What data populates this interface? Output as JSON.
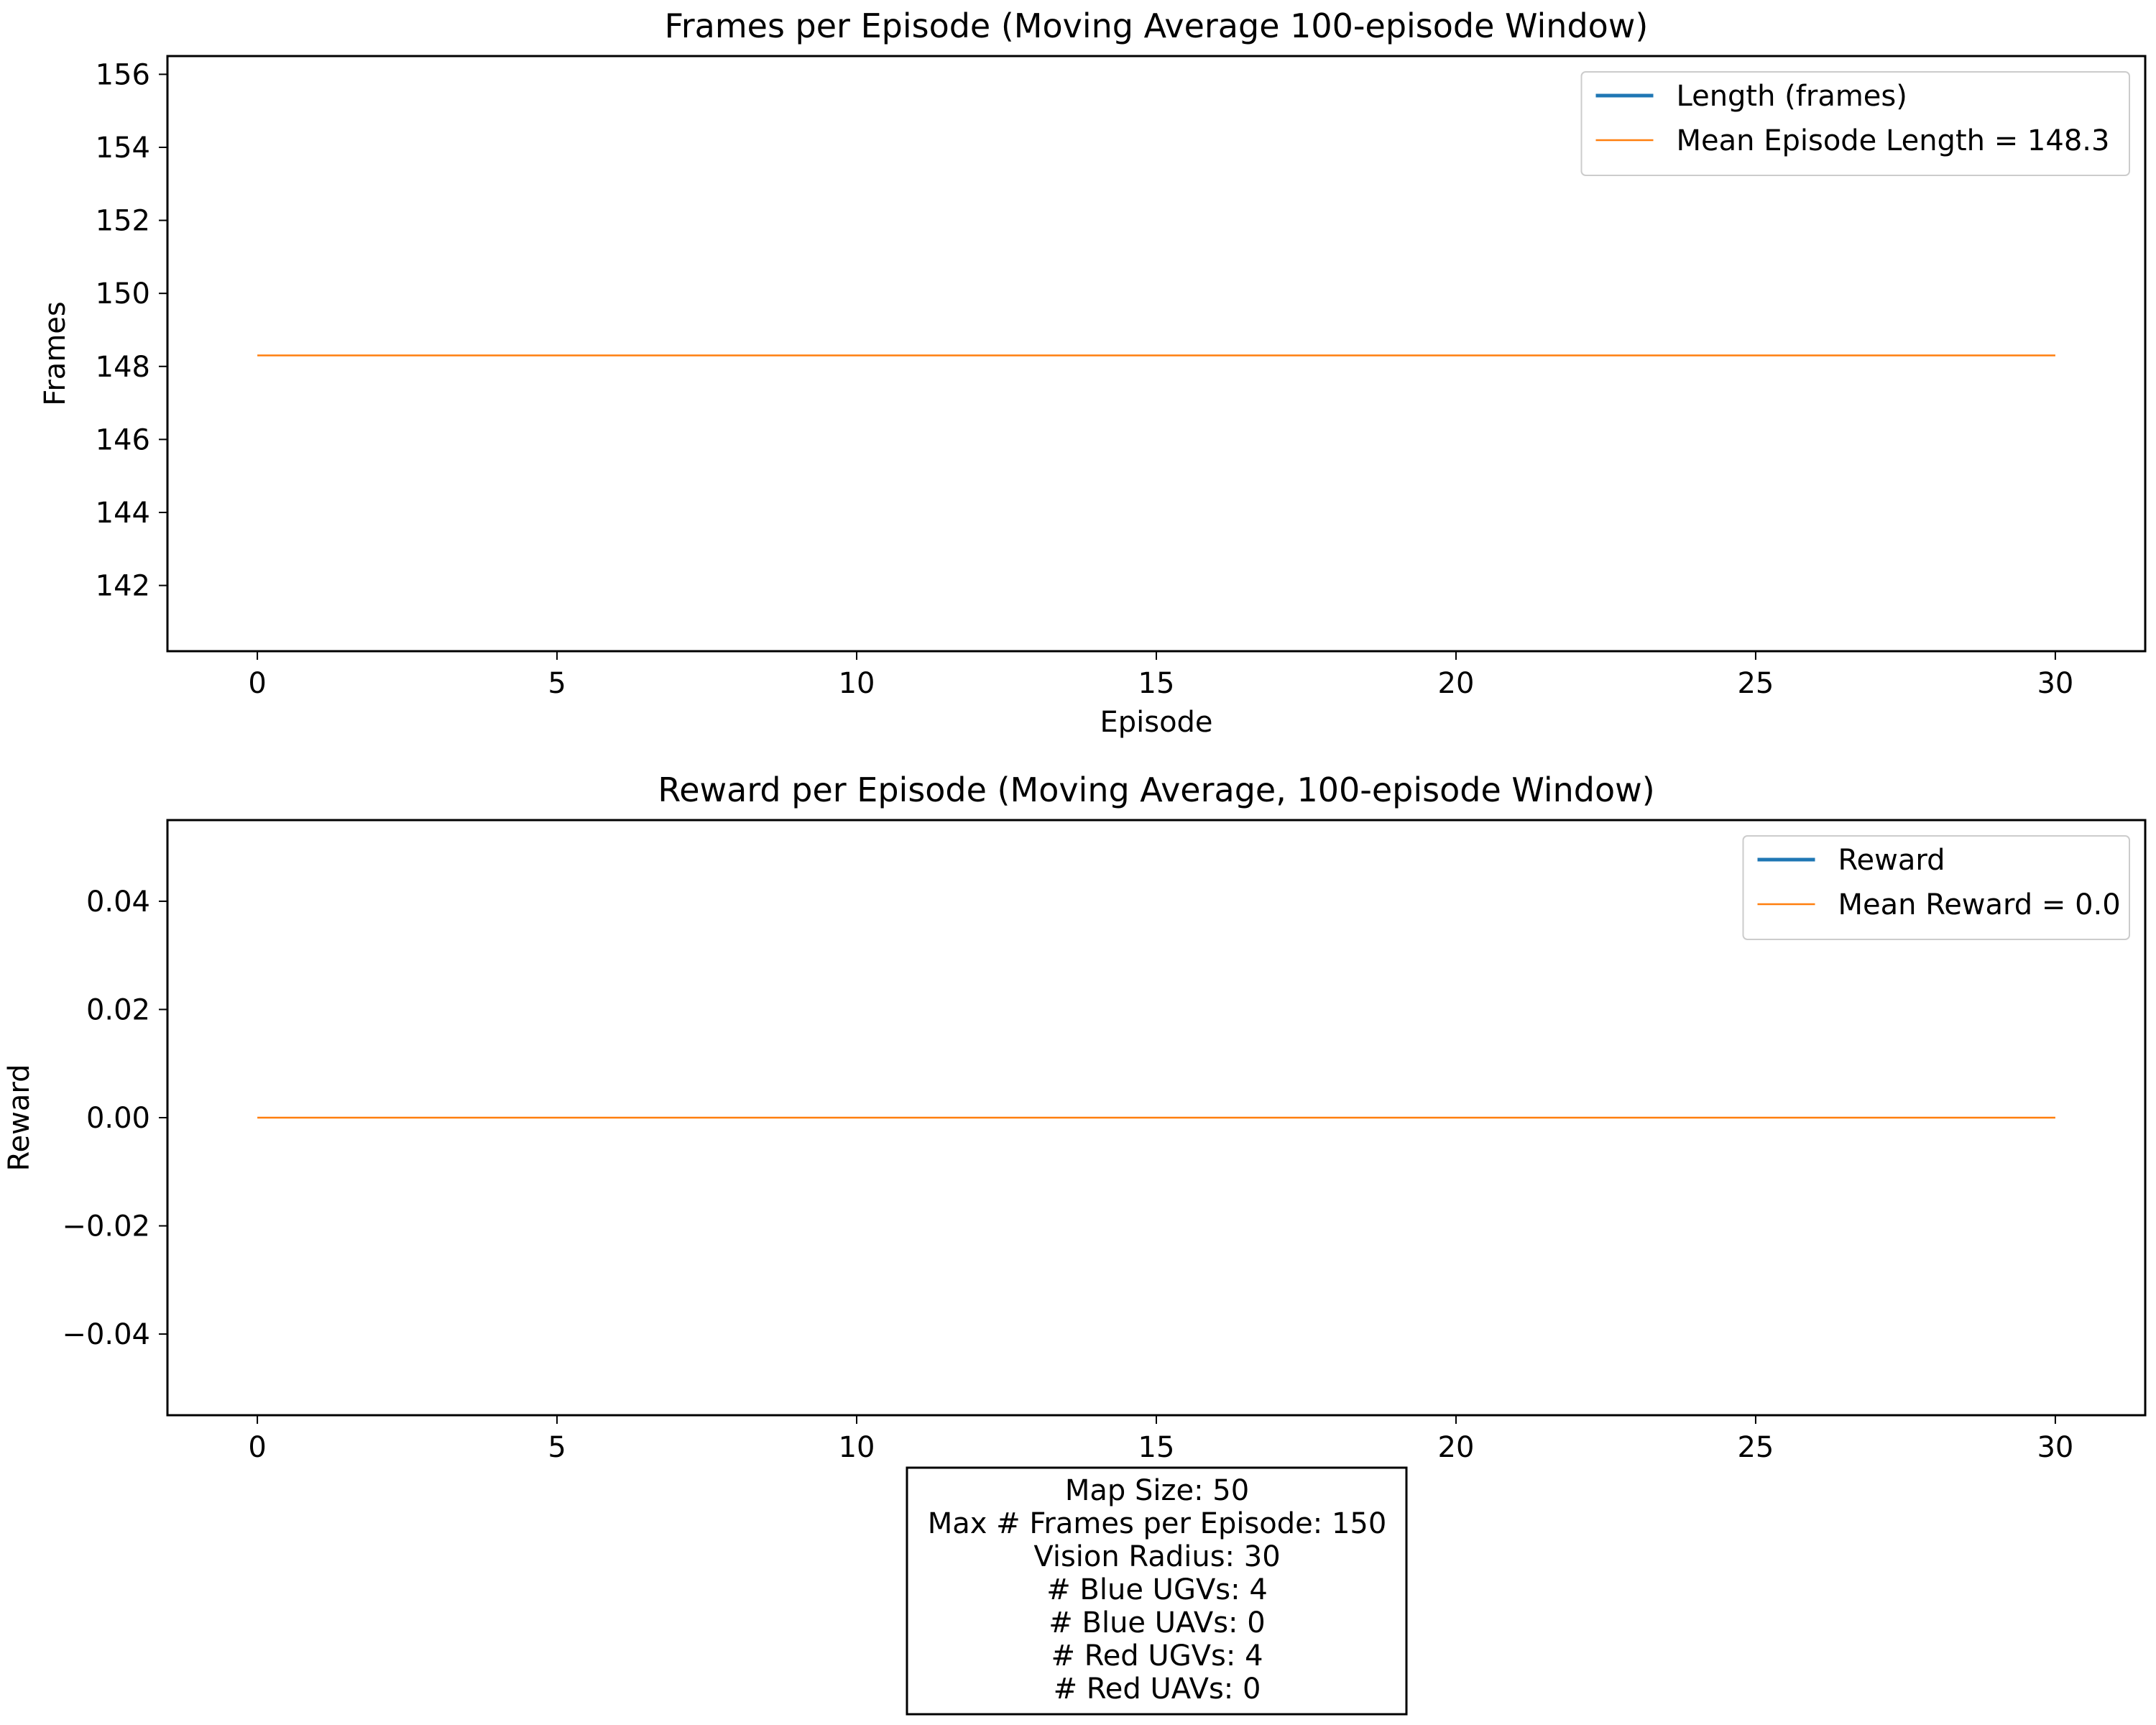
{
  "chart_data": [
    {
      "type": "line",
      "title": "Frames per Episode (Moving Average 100-episode Window)",
      "xlabel": "Episode",
      "ylabel": "Frames",
      "xlim": [
        -1.5,
        31.5
      ],
      "ylim": [
        140.2,
        156.5
      ],
      "xticks": [
        0,
        5,
        10,
        15,
        20,
        25,
        30
      ],
      "yticks": [
        142,
        144,
        146,
        148,
        150,
        152,
        154,
        156
      ],
      "ytick_labels": [
        "142",
        "144",
        "146",
        "148",
        "150",
        "152",
        "154",
        "156"
      ],
      "grid": false,
      "legend_position": "top-right",
      "series": [
        {
          "name": "Length (frames)",
          "color": "#1f77b4",
          "x": [],
          "y": []
        },
        {
          "name": "Mean Episode Length = 148.3",
          "color": "#ff7f0e",
          "x": [
            0,
            30
          ],
          "y": [
            148.3,
            148.3
          ]
        }
      ]
    },
    {
      "type": "line",
      "title": "Reward per Episode (Moving Average, 100-episode Window)",
      "xlabel": "",
      "ylabel": "Reward",
      "xlim": [
        -1.5,
        31.5
      ],
      "ylim": [
        -0.055,
        0.055
      ],
      "xticks": [
        0,
        5,
        10,
        15,
        20,
        25,
        30
      ],
      "yticks": [
        0.04,
        0.02,
        0.0,
        -0.02,
        -0.04
      ],
      "ytick_labels": [
        "0.04",
        "0.02",
        "0.00",
        "−0.02",
        "−0.04"
      ],
      "grid": false,
      "legend_position": "top-right",
      "series": [
        {
          "name": "Reward",
          "color": "#1f77b4",
          "x": [],
          "y": []
        },
        {
          "name": "Mean Reward = 0.0",
          "color": "#ff7f0e",
          "x": [
            0,
            30
          ],
          "y": [
            0.0,
            0.0
          ]
        }
      ]
    }
  ],
  "info_box": {
    "lines": [
      "Map Size: 50",
      "Max # Frames per Episode: 150",
      "Vision Radius: 30",
      "# Blue UGVs: 4",
      "# Blue UAVs: 0",
      "# Red UGVs: 4",
      "# Red UAVs: 0"
    ]
  }
}
